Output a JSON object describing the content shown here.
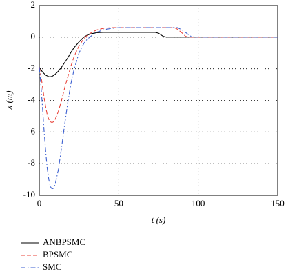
{
  "chart_data": {
    "type": "line",
    "xlabel": "t (s)",
    "ylabel": "x (m)",
    "x": [
      0,
      1,
      2,
      3,
      4,
      5,
      6,
      7,
      8,
      9,
      10,
      12,
      14,
      16,
      18,
      20,
      22,
      25,
      28,
      30,
      33,
      36,
      40,
      45,
      50,
      55,
      60,
      65,
      70,
      73,
      75,
      78,
      80,
      83,
      85,
      87,
      90,
      92,
      94,
      96,
      100,
      110,
      120,
      130,
      140,
      150
    ],
    "series": [
      {
        "name": "ANBPSMC",
        "color": "#000000",
        "style": "solid",
        "values": [
          -1.9,
          -2.05,
          -2.2,
          -2.3,
          -2.4,
          -2.45,
          -2.5,
          -2.5,
          -2.48,
          -2.42,
          -2.35,
          -2.15,
          -1.9,
          -1.6,
          -1.3,
          -0.95,
          -0.65,
          -0.3,
          0,
          0.12,
          0.22,
          0.28,
          0.3,
          0.3,
          0.3,
          0.3,
          0.3,
          0.3,
          0.3,
          0.3,
          0.25,
          0.05,
          0,
          0,
          0,
          0,
          0,
          0,
          0,
          0,
          0,
          0,
          0,
          0,
          0,
          0
        ]
      },
      {
        "name": "BPSMC",
        "color": "#e8433a",
        "style": "dashed",
        "values": [
          -1.9,
          -2.4,
          -3.1,
          -3.8,
          -4.4,
          -4.9,
          -5.2,
          -5.35,
          -5.4,
          -5.35,
          -5.2,
          -4.7,
          -4.0,
          -3.2,
          -2.5,
          -1.8,
          -1.2,
          -0.55,
          -0.1,
          0.1,
          0.3,
          0.45,
          0.55,
          0.6,
          0.6,
          0.6,
          0.6,
          0.6,
          0.6,
          0.6,
          0.6,
          0.6,
          0.6,
          0.6,
          0.6,
          0.5,
          0.25,
          0.05,
          0,
          0,
          0,
          0,
          0,
          0,
          0,
          0
        ]
      },
      {
        "name": "SMC",
        "color": "#3b5fd0",
        "style": "dash-dot",
        "values": [
          -1.9,
          -3.0,
          -4.4,
          -5.9,
          -7.2,
          -8.3,
          -9.0,
          -9.45,
          -9.6,
          -9.55,
          -9.3,
          -8.4,
          -7.0,
          -5.5,
          -4.1,
          -2.9,
          -2.0,
          -1.0,
          -0.4,
          -0.15,
          0.1,
          0.3,
          0.45,
          0.55,
          0.6,
          0.6,
          0.6,
          0.6,
          0.6,
          0.6,
          0.6,
          0.6,
          0.6,
          0.6,
          0.6,
          0.6,
          0.45,
          0.3,
          0.15,
          0.02,
          0,
          0,
          0,
          0,
          0,
          0
        ]
      }
    ],
    "xlim": [
      0,
      150
    ],
    "xticks": [
      0,
      50,
      100,
      150
    ],
    "ylim": [
      -10,
      2
    ],
    "yticks": [
      -10,
      -8,
      -6,
      -4,
      -2,
      0,
      2
    ],
    "grid": true,
    "legend": "below"
  }
}
